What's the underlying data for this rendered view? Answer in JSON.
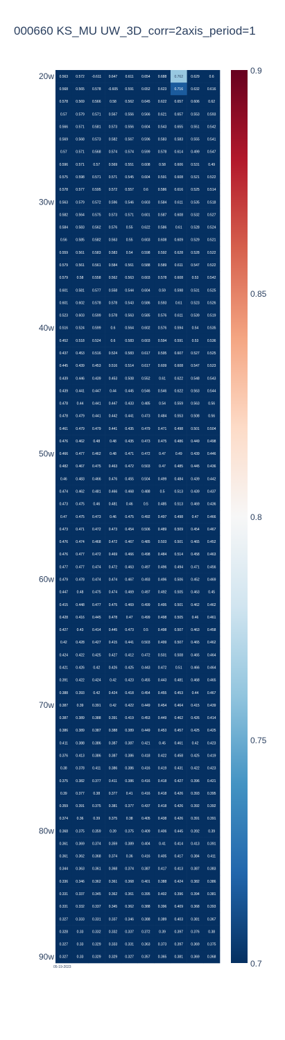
{
  "chart_data": {
    "type": "heatmap",
    "title": "000660 KS_MU UW_3D_corr=2axis_period=1",
    "footer": "05-19-2023",
    "y_tick_labels": [
      "20w",
      "30w",
      "40w",
      "50w",
      "60w",
      "70w",
      "80w",
      "90w"
    ],
    "y_tick_rows": [
      0,
      10,
      20,
      30,
      40,
      50,
      60,
      70
    ],
    "zlim": [
      0.7,
      0.9
    ],
    "colorbar_ticks": [
      0.7,
      0.75,
      0.8,
      0.85,
      0.9
    ],
    "colorscale": [
      "#053061",
      "#2166ac",
      "#4393c3",
      "#92c5de",
      "#d1e5f0",
      "#f7f7f7",
      "#fddbc7",
      "#f4a582",
      "#d6604d",
      "#b2182b",
      "#67001f"
    ],
    "rows": [
      [
        "0.563",
        "0.572",
        "-0.611",
        "0.647",
        "0.611",
        "0.654",
        "0.688",
        "0.762",
        "0.629",
        "0.6"
      ],
      [
        "0.568",
        "0.565",
        "0.578",
        "-0.605",
        "0.591",
        "0.652",
        "0.623",
        "0.716",
        "0.632",
        "0.616"
      ],
      [
        "0.578",
        "0.569",
        "0.566",
        "0.58",
        "0.562",
        "0.645",
        "0.622",
        "0.657",
        "0.606",
        "0.62"
      ],
      [
        "0.57",
        "0.579",
        "0.571",
        "0.567",
        "0.556",
        "0.566",
        "0.621",
        "0.657",
        "0.553",
        "0.593"
      ],
      [
        "0.566",
        "0.571",
        "0.581",
        "0.573",
        "0.556",
        "0.604",
        "0.543",
        "0.655",
        "0.551",
        "0.542"
      ],
      [
        "0.569",
        "0.568",
        "0.573",
        "0.582",
        "0.567",
        "0.596",
        "0.583",
        "0.583",
        "0.555",
        "0.541"
      ],
      [
        "0.57",
        "0.571",
        "0.568",
        "0.574",
        "0.574",
        "0.599",
        "0.578",
        "0.614",
        "0.499",
        "0.547"
      ],
      [
        "0.596",
        "0.571",
        "0.57",
        "0.569",
        "0.551",
        "0.608",
        "0.58",
        "0.606",
        "0.531",
        "0.49"
      ],
      [
        "0.575",
        "0.598",
        "0.571",
        "0.571",
        "0.545",
        "0.604",
        "0.591",
        "0.608",
        "0.521",
        "0.522"
      ],
      [
        "0.578",
        "0.577",
        "0.595",
        "0.572",
        "0.557",
        "0.6",
        "0.586",
        "0.616",
        "0.525",
        "0.514"
      ],
      [
        "0.563",
        "0.579",
        "0.572",
        "0.596",
        "0.546",
        "0.603",
        "0.584",
        "0.611",
        "0.535",
        "0.518"
      ],
      [
        "0.582",
        "0.564",
        "0.575",
        "0.573",
        "0.571",
        "0.601",
        "0.587",
        "0.608",
        "0.532",
        "0.527"
      ],
      [
        "0.584",
        "0.583",
        "0.562",
        "0.576",
        "0.55",
        "0.622",
        "0.586",
        "0.61",
        "0.528",
        "0.524"
      ],
      [
        "0.56",
        "0.585",
        "0.582",
        "0.563",
        "0.55",
        "0.603",
        "0.608",
        "0.609",
        "0.529",
        "0.521"
      ],
      [
        "0.559",
        "0.561",
        "0.583",
        "0.583",
        "0.54",
        "0.598",
        "0.592",
        "0.628",
        "0.528",
        "0.522"
      ],
      [
        "0.579",
        "0.561",
        "0.561",
        "0.584",
        "0.561",
        "0.588",
        "0.589",
        "0.611",
        "0.547",
        "0.522"
      ],
      [
        "0.579",
        "0.58",
        "0.558",
        "0.562",
        "0.563",
        "0.603",
        "0.578",
        "0.608",
        "0.53",
        "0.542"
      ],
      [
        "0.601",
        "0.581",
        "0.577",
        "0.558",
        "0.544",
        "0.604",
        "0.59",
        "0.598",
        "0.531",
        "0.525"
      ],
      [
        "0.601",
        "0.602",
        "0.578",
        "0.578",
        "0.543",
        "0.586",
        "0.593",
        "0.61",
        "0.523",
        "0.526"
      ],
      [
        "0.523",
        "0.603",
        "0.599",
        "0.578",
        "0.563",
        "0.585",
        "0.576",
        "0.611",
        "0.539",
        "0.519"
      ],
      [
        "0.516",
        "0.524",
        "0.599",
        "0.6",
        "0.564",
        "0.602",
        "0.576",
        "0.594",
        "0.54",
        "0.535"
      ],
      [
        "0.452",
        "0.518",
        "0.524",
        "0.6",
        "0.583",
        "0.603",
        "0.594",
        "0.591",
        "0.53",
        "0.536"
      ],
      [
        "0.437",
        "0.453",
        "0.516",
        "0.524",
        "0.583",
        "0.617",
        "0.595",
        "0.607",
        "0.527",
        "0.525"
      ],
      [
        "0.445",
        "0.439",
        "0.453",
        "0.516",
        "0.514",
        "0.617",
        "0.609",
        "0.608",
        "0.547",
        "0.523"
      ],
      [
        "0.439",
        "0.446",
        "0.439",
        "0.453",
        "0.508",
        "0.552",
        "0.61",
        "0.622",
        "0.548",
        "0.543"
      ],
      [
        "0.439",
        "0.441",
        "0.447",
        "0.44",
        "0.445",
        "0.546",
        "0.546",
        "0.622",
        "0.563",
        "0.544"
      ],
      [
        "0.478",
        "0.44",
        "0.441",
        "0.447",
        "0.433",
        "0.485",
        "0.54",
        "0.559",
        "0.563",
        "0.56"
      ],
      [
        "0.478",
        "0.479",
        "0.441",
        "0.442",
        "0.441",
        "0.473",
        "0.484",
        "0.553",
        "0.508",
        "0.56"
      ],
      [
        "0.461",
        "0.479",
        "0.479",
        "0.441",
        "0.435",
        "0.479",
        "0.471",
        "0.498",
        "0.501",
        "0.504"
      ],
      [
        "0.476",
        "0.462",
        "0.48",
        "0.48",
        "0.435",
        "0.473",
        "0.475",
        "0.486",
        "0.449",
        "0.498"
      ],
      [
        "0.466",
        "0.477",
        "0.462",
        "0.48",
        "0.471",
        "0.472",
        "0.47",
        "0.49",
        "0.439",
        "0.446"
      ],
      [
        "0.482",
        "0.467",
        "0.475",
        "0.463",
        "0.472",
        "0.503",
        "0.47",
        "0.485",
        "0.445",
        "0.436"
      ],
      [
        "0.46",
        "0.483",
        "0.466",
        "0.476",
        "0.455",
        "0.504",
        "0.499",
        "0.484",
        "0.439",
        "0.442"
      ],
      [
        "0.474",
        "0.462",
        "0.481",
        "0.466",
        "0.468",
        "0.488",
        "0.5",
        "0.513",
        "0.439",
        "0.437"
      ],
      [
        "0.473",
        "0.475",
        "0.46",
        "0.481",
        "0.46",
        "0.5",
        "0.485",
        "0.513",
        "0.469",
        "0.436"
      ],
      [
        "0.47",
        "0.475",
        "0.473",
        "0.46",
        "0.475",
        "0.492",
        "0.497",
        "0.498",
        "0.47",
        "0.466"
      ],
      [
        "0.473",
        "0.471",
        "0.472",
        "0.473",
        "0.454",
        "0.506",
        "0.489",
        "0.509",
        "0.454",
        "0.467"
      ],
      [
        "0.476",
        "0.474",
        "0.468",
        "0.472",
        "0.467",
        "0.485",
        "0.503",
        "0.501",
        "0.465",
        "0.452"
      ],
      [
        "0.476",
        "0.477",
        "0.472",
        "0.469",
        "0.466",
        "0.498",
        "0.484",
        "0.514",
        "0.458",
        "0.463"
      ],
      [
        "0.477",
        "0.477",
        "0.474",
        "0.472",
        "0.463",
        "0.497",
        "0.496",
        "0.494",
        "0.471",
        "0.456"
      ],
      [
        "0.479",
        "0.478",
        "0.474",
        "0.474",
        "0.467",
        "0.493",
        "0.496",
        "0.506",
        "0.452",
        "0.469"
      ],
      [
        "0.447",
        "0.48",
        "0.475",
        "0.474",
        "0.469",
        "0.497",
        "0.492",
        "0.505",
        "0.463",
        "0.45"
      ],
      [
        "0.415",
        "0.448",
        "0.477",
        "0.475",
        "0.469",
        "0.499",
        "0.495",
        "0.501",
        "0.462",
        "0.462"
      ],
      [
        "0.428",
        "0.416",
        "0.445",
        "0.478",
        "0.47",
        "0.499",
        "0.498",
        "0.505",
        "0.46",
        "0.461"
      ],
      [
        "0.427",
        "0.43",
        "0.414",
        "0.445",
        "0.473",
        "0.5",
        "0.498",
        "0.507",
        "0.463",
        "0.458"
      ],
      [
        "0.42",
        "0.428",
        "0.427",
        "0.415",
        "0.441",
        "0.503",
        "0.499",
        "0.507",
        "0.465",
        "0.462"
      ],
      [
        "0.424",
        "0.422",
        "0.425",
        "0.427",
        "0.412",
        "0.472",
        "0.501",
        "0.508",
        "0.465",
        "0.464"
      ],
      [
        "0.421",
        "0.426",
        "0.42",
        "0.426",
        "0.425",
        "0.443",
        "0.472",
        "0.51",
        "0.466",
        "0.464"
      ],
      [
        "0.391",
        "0.422",
        "0.424",
        "0.42",
        "0.423",
        "0.455",
        "0.443",
        "0.481",
        "0.468",
        "0.465"
      ],
      [
        "0.388",
        "0.393",
        "0.42",
        "0.424",
        "0.418",
        "0.454",
        "0.455",
        "0.453",
        "0.44",
        "0.467"
      ],
      [
        "0.387",
        "0.39",
        "0.391",
        "0.42",
        "0.422",
        "0.449",
        "0.454",
        "0.464",
        "0.415",
        "0.439"
      ],
      [
        "0.387",
        "0.389",
        "0.388",
        "0.391",
        "0.419",
        "0.453",
        "0.449",
        "0.462",
        "0.426",
        "0.414"
      ],
      [
        "0.386",
        "0.389",
        "0.387",
        "0.388",
        "0.389",
        "0.449",
        "0.453",
        "0.457",
        "0.425",
        "0.425"
      ],
      [
        "0.411",
        "0.388",
        "0.386",
        "0.387",
        "0.387",
        "0.421",
        "0.45",
        "0.461",
        "0.42",
        "0.423"
      ],
      [
        "0.376",
        "0.413",
        "0.386",
        "0.387",
        "0.386",
        "0.418",
        "0.422",
        "0.458",
        "0.425",
        "0.419"
      ],
      [
        "0.38",
        "0.378",
        "0.411",
        "0.386",
        "0.386",
        "0.416",
        "0.419",
        "0.431",
        "0.422",
        "0.423"
      ],
      [
        "0.375",
        "0.382",
        "0.377",
        "0.411",
        "0.386",
        "0.416",
        "0.418",
        "0.427",
        "0.396",
        "0.421"
      ],
      [
        "0.39",
        "0.377",
        "0.38",
        "0.377",
        "0.41",
        "0.416",
        "0.418",
        "0.426",
        "0.393",
        "0.395"
      ],
      [
        "0.359",
        "0.391",
        "0.375",
        "0.381",
        "0.377",
        "0.437",
        "0.418",
        "0.426",
        "0.392",
        "0.392"
      ],
      [
        "0.374",
        "0.36",
        "0.39",
        "0.375",
        "0.38",
        "0.405",
        "0.438",
        "0.426",
        "0.391",
        "0.391"
      ],
      [
        "0.368",
        "0.375",
        "0.359",
        "0.39",
        "0.375",
        "0.409",
        "0.406",
        "0.445",
        "0.392",
        "0.39"
      ],
      [
        "0.361",
        "0.369",
        "0.374",
        "0.359",
        "0.389",
        "0.404",
        "0.41",
        "0.414",
        "0.413",
        "0.391"
      ],
      [
        "0.361",
        "0.362",
        "0.368",
        "0.374",
        "0.36",
        "0.416",
        "0.405",
        "0.417",
        "0.384",
        "0.411"
      ],
      [
        "0.344",
        "0.363",
        "0.361",
        "0.368",
        "0.374",
        "0.387",
        "0.417",
        "0.413",
        "0.387",
        "0.383"
      ],
      [
        "0.336",
        "0.346",
        "0.362",
        "0.361",
        "0.368",
        "0.401",
        "0.388",
        "0.424",
        "0.382",
        "0.386"
      ],
      [
        "0.331",
        "0.337",
        "0.345",
        "0.362",
        "0.361",
        "0.395",
        "0.402",
        "0.396",
        "0.394",
        "0.381"
      ],
      [
        "0.331",
        "0.332",
        "0.337",
        "0.345",
        "0.362",
        "0.388",
        "0.396",
        "0.409",
        "0.368",
        "0.393"
      ],
      [
        "0.327",
        "0.333",
        "0.331",
        "0.337",
        "0.346",
        "0.388",
        "0.389",
        "0.403",
        "0.381",
        "0.367"
      ],
      [
        "0.328",
        "0.33",
        "0.332",
        "0.332",
        "0.337",
        "0.372",
        "0.39",
        "0.397",
        "0.376",
        "0.38"
      ],
      [
        "0.327",
        "0.33",
        "0.329",
        "0.333",
        "0.331",
        "0.363",
        "0.373",
        "0.397",
        "0.369",
        "0.375"
      ],
      [
        "0.327",
        "0.33",
        "0.329",
        "0.329",
        "0.327",
        "0.357",
        "0.365",
        "0.381",
        "0.369",
        "0.368"
      ]
    ]
  }
}
